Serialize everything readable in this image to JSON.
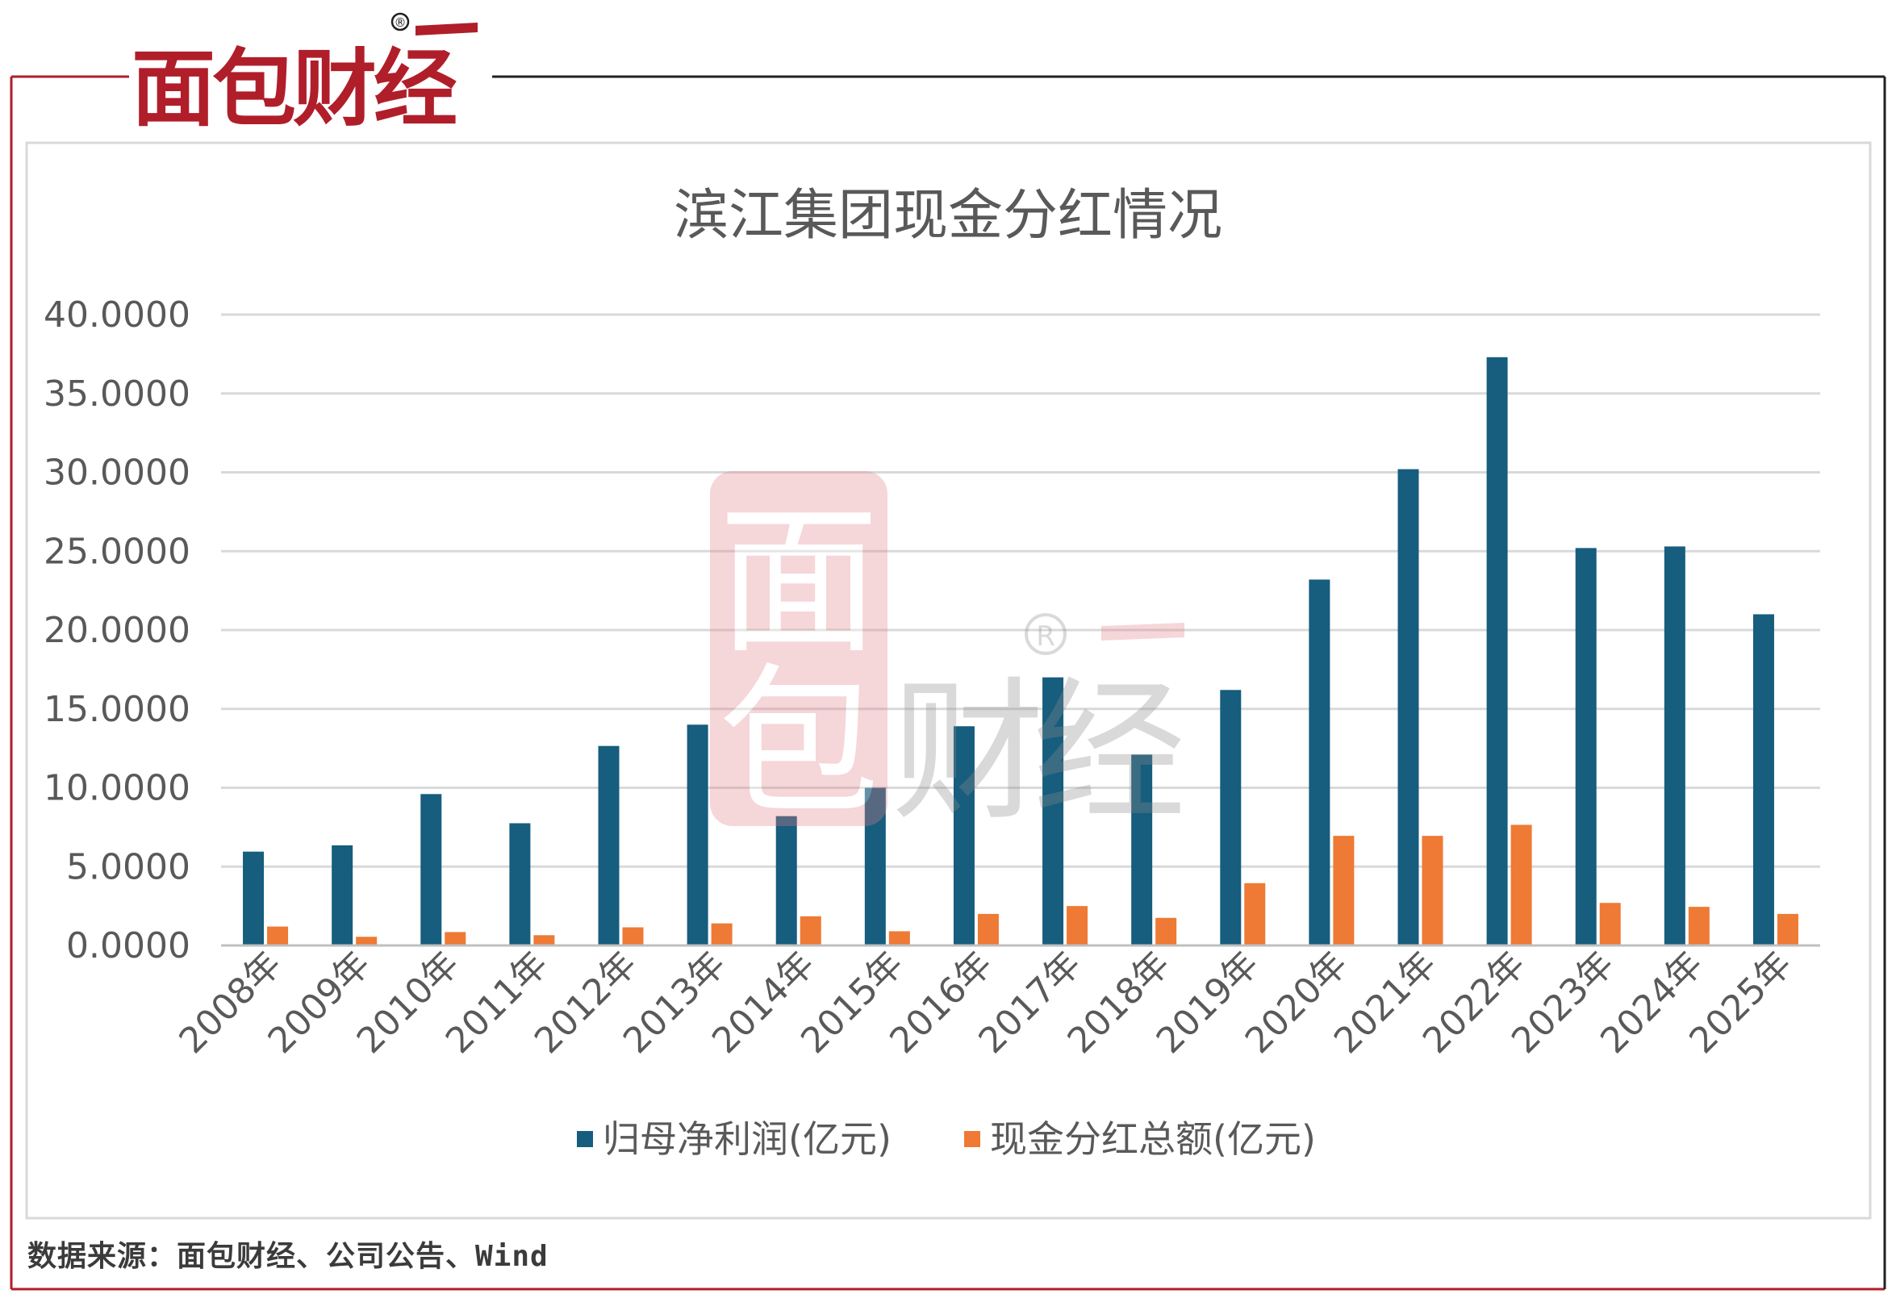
{
  "brand": {
    "logo_text": "面包财经",
    "registered_mark": "®"
  },
  "source_note": "数据来源：面包财经、公司公告、Wind",
  "colors": {
    "series1": "#165d7e",
    "series2": "#ee7a35",
    "brand_red": "#b01e2a",
    "brand_dark": "#231f20"
  },
  "chart_data": {
    "type": "bar",
    "title": "滨江集团现金分红情况",
    "xlabel": "",
    "ylabel": "",
    "ylim": [
      0,
      40
    ],
    "yticks": [
      "0.0000",
      "5.0000",
      "10.0000",
      "15.0000",
      "20.0000",
      "25.0000",
      "30.0000",
      "35.0000",
      "40.0000"
    ],
    "grid": true,
    "legend_position": "bottom",
    "categories": [
      "2008年",
      "2009年",
      "2010年",
      "2011年",
      "2012年",
      "2013年",
      "2014年",
      "2015年",
      "2016年",
      "2017年",
      "2018年",
      "2019年",
      "2020年",
      "2021年",
      "2022年",
      "2023年",
      "2024年",
      "2025年"
    ],
    "series": [
      {
        "name": "归母净利润(亿元)",
        "color": "#165d7e",
        "values": [
          5.95,
          6.35,
          9.6,
          7.75,
          12.65,
          14.0,
          8.2,
          10.0,
          13.9,
          17.0,
          12.1,
          16.2,
          23.2,
          30.2,
          37.3,
          25.2,
          25.3,
          21.0
        ]
      },
      {
        "name": "现金分红总额(亿元)",
        "color": "#ee7a35",
        "values": [
          1.2,
          0.55,
          0.85,
          0.65,
          1.15,
          1.4,
          1.85,
          0.9,
          2.0,
          2.5,
          1.75,
          3.95,
          6.95,
          6.95,
          7.65,
          2.7,
          2.45,
          2.0
        ]
      }
    ]
  }
}
